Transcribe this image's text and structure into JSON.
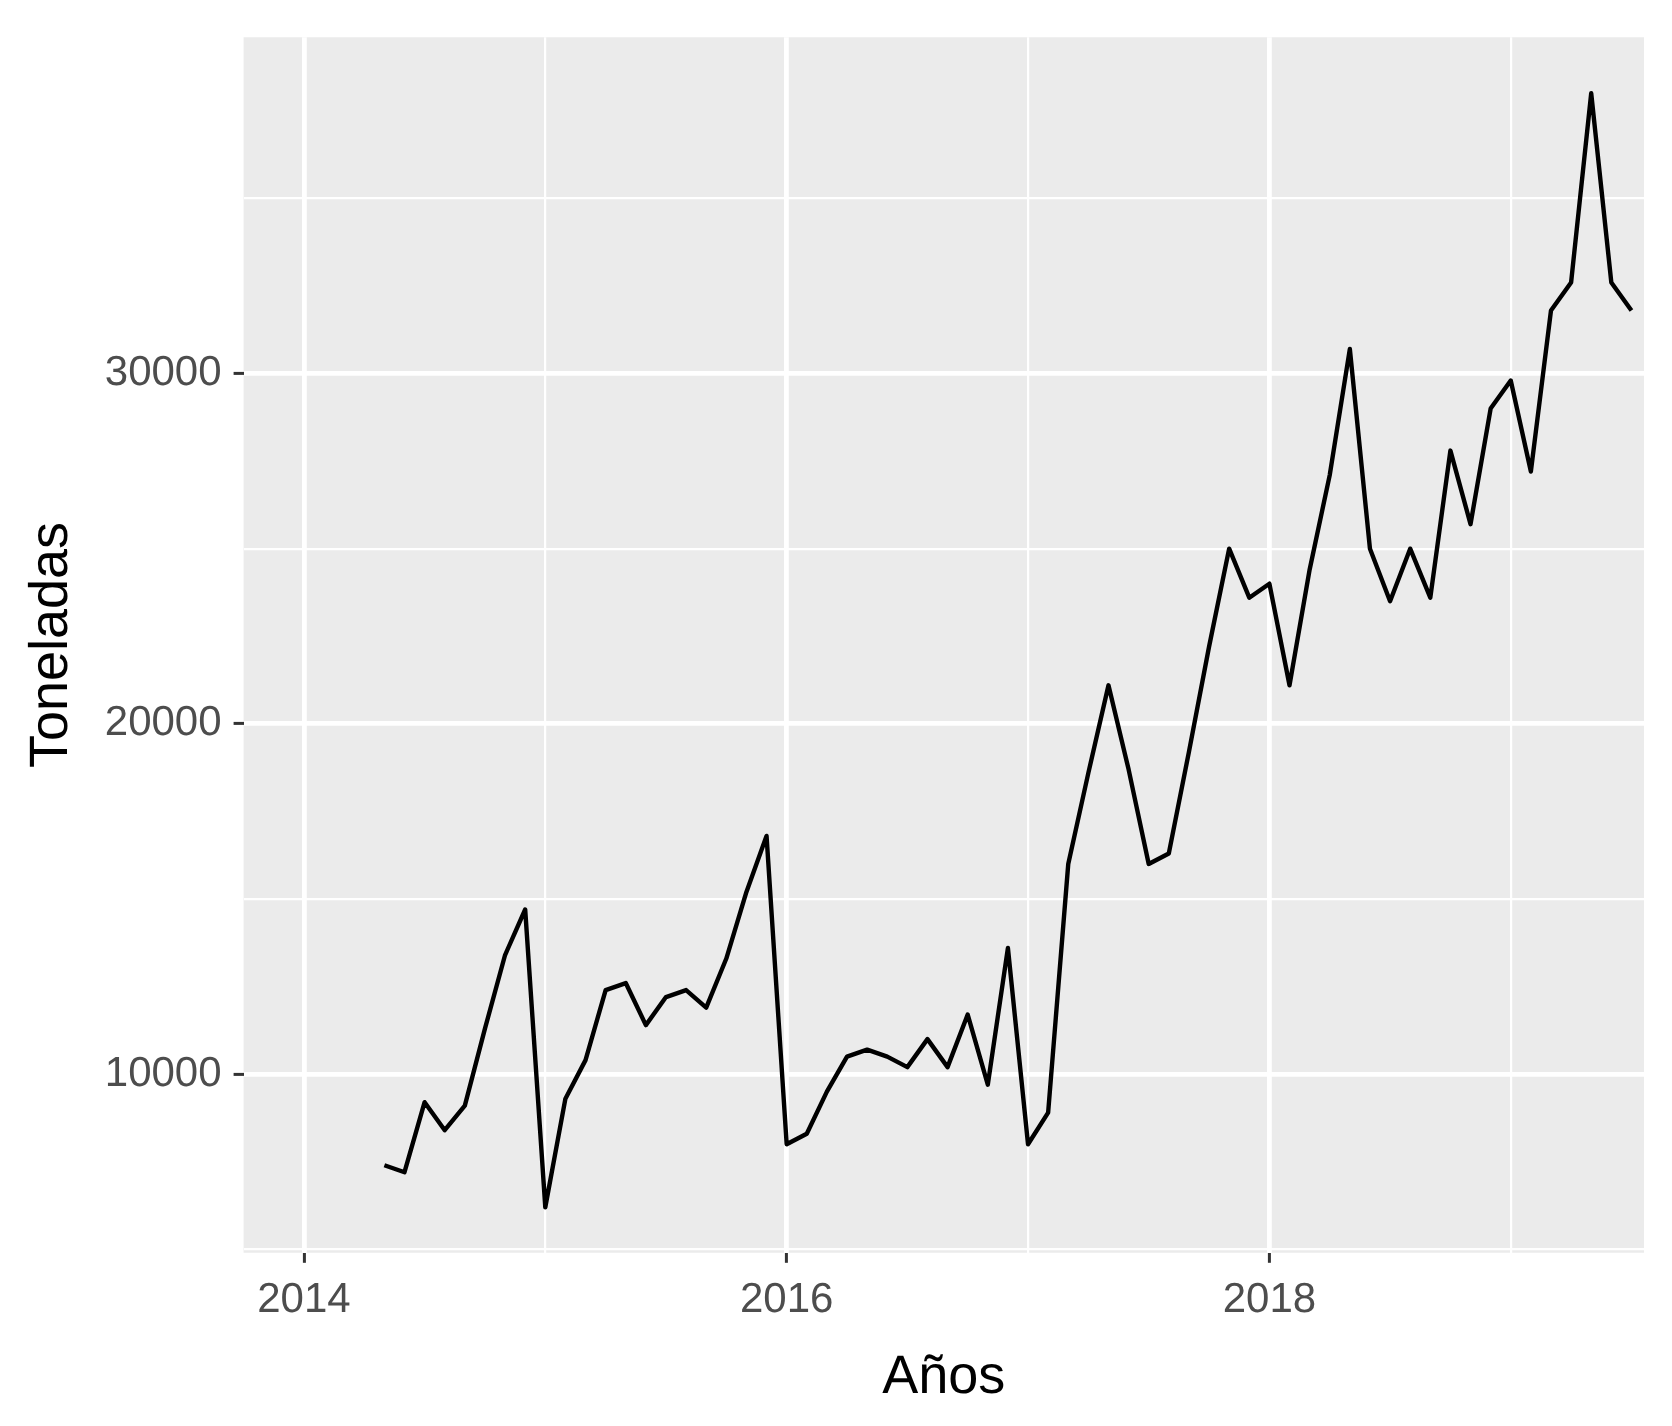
{
  "chart_data": {
    "type": "line",
    "xlabel": "Años",
    "ylabel": "Toneladas",
    "x": [
      "2014-05",
      "2014-06",
      "2014-07",
      "2014-08",
      "2014-09",
      "2014-10",
      "2014-11",
      "2014-12",
      "2015-01",
      "2015-02",
      "2015-03",
      "2015-04",
      "2015-05",
      "2015-06",
      "2015-07",
      "2015-08",
      "2015-09",
      "2015-10",
      "2015-11",
      "2015-12",
      "2016-01",
      "2016-02",
      "2016-03",
      "2016-04",
      "2016-05",
      "2016-06",
      "2016-07",
      "2016-08",
      "2016-09",
      "2016-10",
      "2016-11",
      "2016-12",
      "2017-01",
      "2017-02",
      "2017-03",
      "2017-04",
      "2017-05",
      "2017-06",
      "2017-07",
      "2017-08",
      "2017-09",
      "2017-10",
      "2017-11",
      "2017-12",
      "2018-01",
      "2018-02",
      "2018-03",
      "2018-04",
      "2018-05",
      "2018-06",
      "2018-07",
      "2018-08",
      "2018-09",
      "2018-10",
      "2018-11",
      "2018-12",
      "2019-01",
      "2019-02",
      "2019-03",
      "2019-04",
      "2019-05",
      "2019-06",
      "2019-07"
    ],
    "series": [
      {
        "color": "#000000",
        "values": [
          7400,
          7200,
          9200,
          8400,
          9100,
          11300,
          13400,
          14700,
          6200,
          9300,
          10400,
          12400,
          12600,
          11400,
          12200,
          12400,
          11900,
          13300,
          15200,
          16800,
          8000,
          8300,
          9500,
          10500,
          10700,
          10500,
          10200,
          11000,
          10200,
          11700,
          9700,
          13600,
          8000,
          8900,
          16000,
          18600,
          21100,
          18700,
          16000,
          16300,
          19200,
          22200,
          25000,
          23600,
          24000,
          21100,
          24400,
          27100,
          30700,
          25000,
          23500,
          25000,
          23600,
          27800,
          25700,
          29000,
          29800,
          27200,
          31800,
          32600,
          38000,
          32600,
          31800
        ]
      }
    ],
    "xlim": [
      "2013-10",
      "2019-07-20"
    ],
    "xticks": [
      "2014",
      "2016",
      "2018"
    ],
    "ylim": [
      4900,
      39600
    ],
    "yticks": [
      10000,
      20000,
      30000
    ],
    "grid": true,
    "marker": "none",
    "line_style": "solid"
  }
}
